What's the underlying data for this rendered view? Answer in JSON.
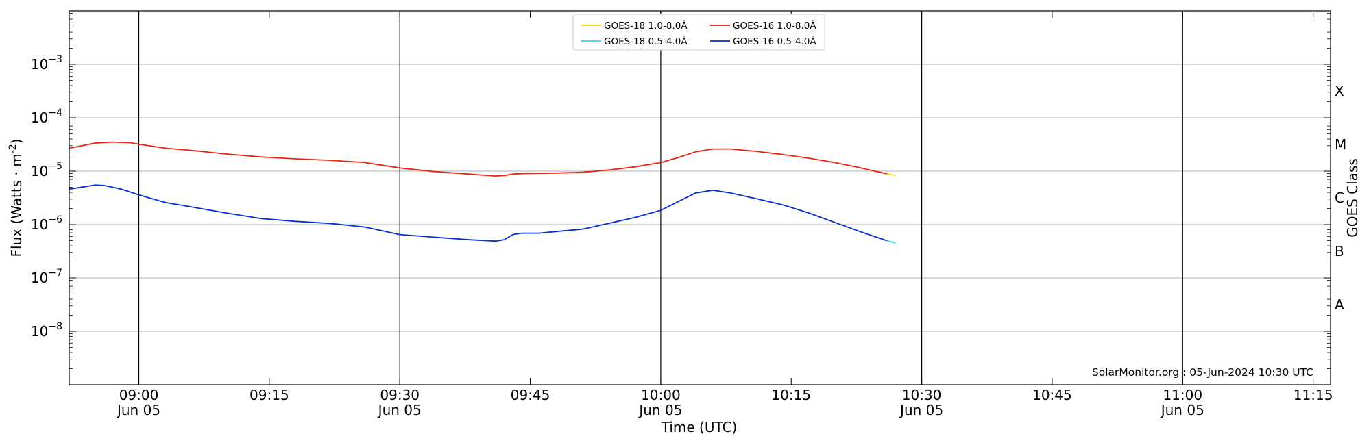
{
  "chart_data": {
    "type": "line",
    "xlabel": "Time (UTC)",
    "ylabel_base": "Flux (Watts · m",
    "ylabel_exp": "-2",
    "ylabel_close": ")",
    "y2label": "GOES Class",
    "yscale": "log",
    "xlim": [
      "08:52",
      "11:17"
    ],
    "ylim": [
      1e-09,
      0.01
    ],
    "grid": "horizontal lines at decades",
    "legend_placement": "top-center",
    "watermark": "SolarMonitor.org : 05-Jun-2024 10:30 UTC",
    "y_ticks": [
      {
        "value": 1e-08,
        "base": "10",
        "exp": "−8"
      },
      {
        "value": 1e-07,
        "base": "10",
        "exp": "−7"
      },
      {
        "value": 1e-06,
        "base": "10",
        "exp": "−6"
      },
      {
        "value": 1e-05,
        "base": "10",
        "exp": "−5"
      },
      {
        "value": 0.0001,
        "base": "10",
        "exp": "−4"
      },
      {
        "value": 0.001,
        "base": "10",
        "exp": "−3"
      }
    ],
    "x_ticks": [
      {
        "time": "09:00",
        "label": "09:00",
        "sub": "Jun 05",
        "major": true
      },
      {
        "time": "09:15",
        "label": "09:15",
        "sub": "",
        "major": false
      },
      {
        "time": "09:30",
        "label": "09:30",
        "sub": "Jun 05",
        "major": true
      },
      {
        "time": "09:45",
        "label": "09:45",
        "sub": "",
        "major": false
      },
      {
        "time": "10:00",
        "label": "10:00",
        "sub": "Jun 05",
        "major": true
      },
      {
        "time": "10:15",
        "label": "10:15",
        "sub": "",
        "major": false
      },
      {
        "time": "10:30",
        "label": "10:30",
        "sub": "Jun 05",
        "major": true
      },
      {
        "time": "10:45",
        "label": "10:45",
        "sub": "",
        "major": false
      },
      {
        "time": "11:00",
        "label": "11:00",
        "sub": "Jun 05",
        "major": true
      },
      {
        "time": "11:15",
        "label": "11:15",
        "sub": "",
        "major": false
      }
    ],
    "goes_classes": [
      {
        "label": "A",
        "value": 3.16e-08
      },
      {
        "label": "B",
        "value": 3.16e-07
      },
      {
        "label": "C",
        "value": 3.16e-06
      },
      {
        "label": "M",
        "value": 3.16e-05
      },
      {
        "label": "X",
        "value": 0.000316
      }
    ],
    "series": [
      {
        "name": "GOES-16 1.0-8.0Å",
        "color": "#e8250f",
        "points": [
          [
            "08:52",
            2.7e-05
          ],
          [
            "08:55",
            3.35e-05
          ],
          [
            "08:57",
            3.5e-05
          ],
          [
            "08:59",
            3.4e-05
          ],
          [
            "09:00",
            3.2e-05
          ],
          [
            "09:03",
            2.7e-05
          ],
          [
            "09:06",
            2.45e-05
          ],
          [
            "09:10",
            2.1e-05
          ],
          [
            "09:14",
            1.85e-05
          ],
          [
            "09:18",
            1.7e-05
          ],
          [
            "09:22",
            1.6e-05
          ],
          [
            "09:26",
            1.45e-05
          ],
          [
            "09:30",
            1.15e-05
          ],
          [
            "09:34",
            9.8e-06
          ],
          [
            "09:38",
            8.8e-06
          ],
          [
            "09:41",
            8.1e-06
          ],
          [
            "09:42",
            8.3e-06
          ],
          [
            "09:43",
            8.8e-06
          ],
          [
            "09:44",
            9e-06
          ],
          [
            "09:48",
            9.2e-06
          ],
          [
            "09:51",
            9.5e-06
          ],
          [
            "09:54",
            1.05e-05
          ],
          [
            "09:57",
            1.2e-05
          ],
          [
            "10:00",
            1.45e-05
          ],
          [
            "10:02",
            1.8e-05
          ],
          [
            "10:04",
            2.3e-05
          ],
          [
            "10:06",
            2.6e-05
          ],
          [
            "10:08",
            2.6e-05
          ],
          [
            "10:11",
            2.35e-05
          ],
          [
            "10:14",
            2.05e-05
          ],
          [
            "10:17",
            1.75e-05
          ],
          [
            "10:20",
            1.45e-05
          ],
          [
            "10:23",
            1.15e-05
          ],
          [
            "10:26",
            8.9e-06
          ]
        ]
      },
      {
        "name": "GOES-18 1.0-8.0Å",
        "color": "#ffd500",
        "points": [
          [
            "10:26",
            8.9e-06
          ],
          [
            "10:27",
            8.3e-06
          ]
        ]
      },
      {
        "name": "GOES-16 0.5-4.0Å",
        "color": "#0a2fd0",
        "points": [
          [
            "08:52",
            4.6e-06
          ],
          [
            "08:54",
            5.2e-06
          ],
          [
            "08:55",
            5.5e-06
          ],
          [
            "08:56",
            5.4e-06
          ],
          [
            "08:58",
            4.6e-06
          ],
          [
            "09:00",
            3.6e-06
          ],
          [
            "09:03",
            2.6e-06
          ],
          [
            "09:06",
            2.15e-06
          ],
          [
            "09:10",
            1.65e-06
          ],
          [
            "09:14",
            1.3e-06
          ],
          [
            "09:18",
            1.15e-06
          ],
          [
            "09:22",
            1.05e-06
          ],
          [
            "09:26",
            9e-07
          ],
          [
            "09:30",
            6.5e-07
          ],
          [
            "09:34",
            5.8e-07
          ],
          [
            "09:38",
            5.2e-07
          ],
          [
            "09:41",
            4.9e-07
          ],
          [
            "09:42",
            5.2e-07
          ],
          [
            "09:43",
            6.5e-07
          ],
          [
            "09:44",
            6.9e-07
          ],
          [
            "09:46",
            6.9e-07
          ],
          [
            "09:48",
            7.4e-07
          ],
          [
            "09:51",
            8.2e-07
          ],
          [
            "09:54",
            1.05e-06
          ],
          [
            "09:57",
            1.35e-06
          ],
          [
            "10:00",
            1.85e-06
          ],
          [
            "10:02",
            2.7e-06
          ],
          [
            "10:04",
            3.9e-06
          ],
          [
            "10:06",
            4.4e-06
          ],
          [
            "10:08",
            3.9e-06
          ],
          [
            "10:11",
            3.05e-06
          ],
          [
            "10:14",
            2.35e-06
          ],
          [
            "10:17",
            1.65e-06
          ],
          [
            "10:20",
            1.1e-06
          ],
          [
            "10:23",
            7.3e-07
          ],
          [
            "10:26",
            5e-07
          ]
        ]
      },
      {
        "name": "GOES-18 0.5-4.0Å",
        "color": "#3fd8ef",
        "points": [
          [
            "10:26",
            5e-07
          ],
          [
            "10:27",
            4.5e-07
          ]
        ]
      }
    ],
    "legend_order": [
      "GOES-18 1.0-8.0Å",
      "GOES-18 0.5-4.0Å",
      "GOES-16 1.0-8.0Å",
      "GOES-16 0.5-4.0Å"
    ]
  }
}
